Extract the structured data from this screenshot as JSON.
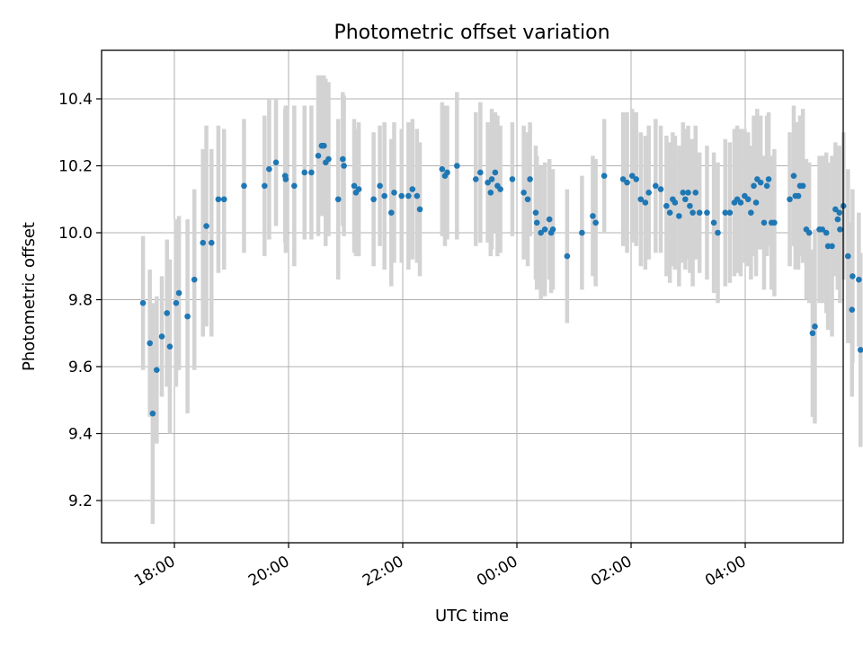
{
  "chart_data": {
    "type": "scatter",
    "title": "Photometric offset variation",
    "xlabel": "UTC time",
    "ylabel": "Photometric offset",
    "x_unit": "hours after 00:00 UTC on the first night",
    "xlim": [
      17.3,
      29.3
    ],
    "ylim": [
      9.08,
      10.55
    ],
    "x_ticks": [
      {
        "value": 18,
        "label": "18:00"
      },
      {
        "value": 20,
        "label": "20:00"
      },
      {
        "value": 22,
        "label": "22:00"
      },
      {
        "value": 24,
        "label": "00:00"
      },
      {
        "value": 26,
        "label": "02:00"
      },
      {
        "value": 28,
        "label": "04:00"
      }
    ],
    "y_ticks": [
      {
        "value": 9.2,
        "label": "9.2"
      },
      {
        "value": 9.4,
        "label": "9.4"
      },
      {
        "value": 9.6,
        "label": "9.6"
      },
      {
        "value": 9.8,
        "label": "9.8"
      },
      {
        "value": 10.0,
        "label": "10.0"
      },
      {
        "value": 10.2,
        "label": "10.2"
      },
      {
        "value": 10.4,
        "label": "10.4"
      }
    ],
    "grid": true,
    "colors": {
      "point": "#1f77b4",
      "errorbar": "#d3d3d3",
      "grid": "#b0b0b0"
    },
    "points": [
      [
        17.45,
        9.79,
        0.2
      ],
      [
        17.57,
        9.67,
        0.22
      ],
      [
        17.62,
        9.46,
        0.33
      ],
      [
        17.69,
        9.59,
        0.22
      ],
      [
        17.78,
        9.69,
        0.18
      ],
      [
        17.87,
        9.76,
        0.22
      ],
      [
        17.92,
        9.66,
        0.26
      ],
      [
        18.03,
        9.79,
        0.25
      ],
      [
        18.08,
        9.82,
        0.23
      ],
      [
        18.23,
        9.75,
        0.29
      ],
      [
        18.35,
        9.86,
        0.27
      ],
      [
        18.5,
        9.97,
        0.28
      ],
      [
        18.56,
        10.02,
        0.3
      ],
      [
        18.65,
        9.97,
        0.28
      ],
      [
        18.77,
        10.1,
        0.22
      ],
      [
        18.87,
        10.1,
        0.21
      ],
      [
        19.22,
        10.14,
        0.2
      ],
      [
        19.58,
        10.14,
        0.21
      ],
      [
        19.66,
        10.19,
        0.21
      ],
      [
        19.78,
        10.21,
        0.19
      ],
      [
        19.94,
        10.17,
        0.2
      ],
      [
        19.95,
        10.16,
        0.22
      ],
      [
        20.1,
        10.14,
        0.24
      ],
      [
        20.28,
        10.18,
        0.2
      ],
      [
        20.4,
        10.18,
        0.2
      ],
      [
        20.52,
        10.23,
        0.24
      ],
      [
        20.58,
        10.26,
        0.21
      ],
      [
        20.62,
        10.26,
        0.21
      ],
      [
        20.65,
        10.21,
        0.25
      ],
      [
        20.7,
        10.22,
        0.23
      ],
      [
        20.87,
        10.1,
        0.24
      ],
      [
        20.95,
        10.22,
        0.2
      ],
      [
        20.97,
        10.2,
        0.21
      ],
      [
        21.15,
        10.14,
        0.2
      ],
      [
        21.18,
        10.12,
        0.19
      ],
      [
        21.23,
        10.13,
        0.2
      ],
      [
        21.49,
        10.1,
        0.2
      ],
      [
        21.6,
        10.14,
        0.18
      ],
      [
        21.68,
        10.11,
        0.22
      ],
      [
        21.8,
        10.06,
        0.22
      ],
      [
        21.85,
        10.12,
        0.21
      ],
      [
        21.98,
        10.11,
        0.2
      ],
      [
        22.1,
        10.11,
        0.22
      ],
      [
        22.17,
        10.13,
        0.21
      ],
      [
        22.25,
        10.11,
        0.2
      ],
      [
        22.3,
        10.07,
        0.2
      ],
      [
        22.69,
        10.19,
        0.2
      ],
      [
        22.74,
        10.17,
        0.21
      ],
      [
        22.78,
        10.18,
        0.2
      ],
      [
        22.95,
        10.2,
        0.22
      ],
      [
        23.28,
        10.16,
        0.2
      ],
      [
        23.36,
        10.18,
        0.21
      ],
      [
        23.49,
        10.15,
        0.18
      ],
      [
        23.54,
        10.12,
        0.19
      ],
      [
        23.56,
        10.16,
        0.21
      ],
      [
        23.62,
        10.18,
        0.18
      ],
      [
        23.66,
        10.14,
        0.21
      ],
      [
        23.71,
        10.13,
        0.19
      ],
      [
        23.92,
        10.16,
        0.17
      ],
      [
        24.12,
        10.12,
        0.2
      ],
      [
        24.19,
        10.1,
        0.2
      ],
      [
        24.23,
        10.16,
        0.17
      ],
      [
        24.33,
        10.06,
        0.2
      ],
      [
        24.35,
        10.03,
        0.2
      ],
      [
        24.42,
        10.0,
        0.2
      ],
      [
        24.49,
        10.01,
        0.2
      ],
      [
        24.57,
        10.04,
        0.18
      ],
      [
        24.6,
        10.0,
        0.18
      ],
      [
        24.63,
        10.01,
        0.18
      ],
      [
        24.88,
        9.93,
        0.2
      ],
      [
        25.14,
        10.0,
        0.17
      ],
      [
        25.33,
        10.05,
        0.18
      ],
      [
        25.38,
        10.03,
        0.19
      ],
      [
        25.53,
        10.17,
        0.17
      ],
      [
        25.86,
        10.16,
        0.2
      ],
      [
        25.93,
        10.15,
        0.21
      ],
      [
        26.02,
        10.17,
        0.2
      ],
      [
        26.09,
        10.16,
        0.2
      ],
      [
        26.17,
        10.1,
        0.2
      ],
      [
        26.25,
        10.09,
        0.2
      ],
      [
        26.31,
        10.12,
        0.2
      ],
      [
        26.43,
        10.14,
        0.2
      ],
      [
        26.52,
        10.13,
        0.19
      ],
      [
        26.62,
        10.08,
        0.21
      ],
      [
        26.68,
        10.06,
        0.21
      ],
      [
        26.73,
        10.1,
        0.2
      ],
      [
        26.77,
        10.09,
        0.2
      ],
      [
        26.84,
        10.05,
        0.21
      ],
      [
        26.91,
        10.12,
        0.21
      ],
      [
        26.95,
        10.1,
        0.21
      ],
      [
        27.0,
        10.12,
        0.2
      ],
      [
        27.03,
        10.08,
        0.2
      ],
      [
        27.08,
        10.06,
        0.22
      ],
      [
        27.13,
        10.12,
        0.2
      ],
      [
        27.2,
        10.06,
        0.18
      ],
      [
        27.33,
        10.06,
        0.2
      ],
      [
        27.45,
        10.03,
        0.21
      ],
      [
        27.52,
        10.0,
        0.21
      ],
      [
        27.65,
        10.06,
        0.22
      ],
      [
        27.73,
        10.06,
        0.21
      ],
      [
        27.81,
        10.09,
        0.22
      ],
      [
        27.86,
        10.1,
        0.22
      ],
      [
        27.92,
        10.09,
        0.22
      ],
      [
        27.99,
        10.11,
        0.2
      ],
      [
        28.05,
        10.1,
        0.2
      ],
      [
        28.1,
        10.06,
        0.2
      ],
      [
        28.15,
        10.14,
        0.21
      ],
      [
        28.19,
        10.09,
        0.22
      ],
      [
        28.21,
        10.16,
        0.21
      ],
      [
        28.27,
        10.15,
        0.2
      ],
      [
        28.33,
        10.03,
        0.2
      ],
      [
        28.38,
        10.14,
        0.21
      ],
      [
        28.41,
        10.16,
        0.2
      ],
      [
        28.46,
        10.03,
        0.2
      ],
      [
        28.51,
        10.03,
        0.22
      ],
      [
        28.78,
        10.1,
        0.2
      ],
      [
        28.85,
        10.17,
        0.21
      ],
      [
        28.88,
        10.11,
        0.22
      ],
      [
        28.93,
        10.11,
        0.22
      ],
      [
        28.96,
        10.14,
        0.21
      ],
      [
        29.01,
        10.14,
        0.23
      ],
      [
        29.07,
        10.01,
        0.21
      ],
      [
        29.12,
        10.0,
        0.21
      ],
      [
        29.18,
        9.7,
        0.25
      ],
      [
        29.22,
        9.72,
        0.29
      ],
      [
        29.3,
        10.01,
        0.22
      ],
      [
        29.35,
        10.01,
        0.22
      ],
      [
        29.42,
        10.0,
        0.24
      ],
      [
        29.45,
        9.96,
        0.25
      ],
      [
        29.52,
        9.96,
        0.27
      ],
      [
        29.58,
        10.07,
        0.2
      ],
      [
        29.62,
        10.04,
        0.21
      ],
      [
        29.65,
        10.06,
        0.2
      ],
      [
        29.66,
        10.01,
        0.22
      ],
      [
        29.72,
        10.08,
        0.22
      ],
      [
        29.8,
        9.93,
        0.26
      ],
      [
        29.87,
        9.77,
        0.26
      ],
      [
        29.88,
        9.87,
        0.26
      ],
      [
        29.99,
        9.86,
        0.2
      ],
      [
        30.02,
        9.65,
        0.29
      ]
    ]
  }
}
